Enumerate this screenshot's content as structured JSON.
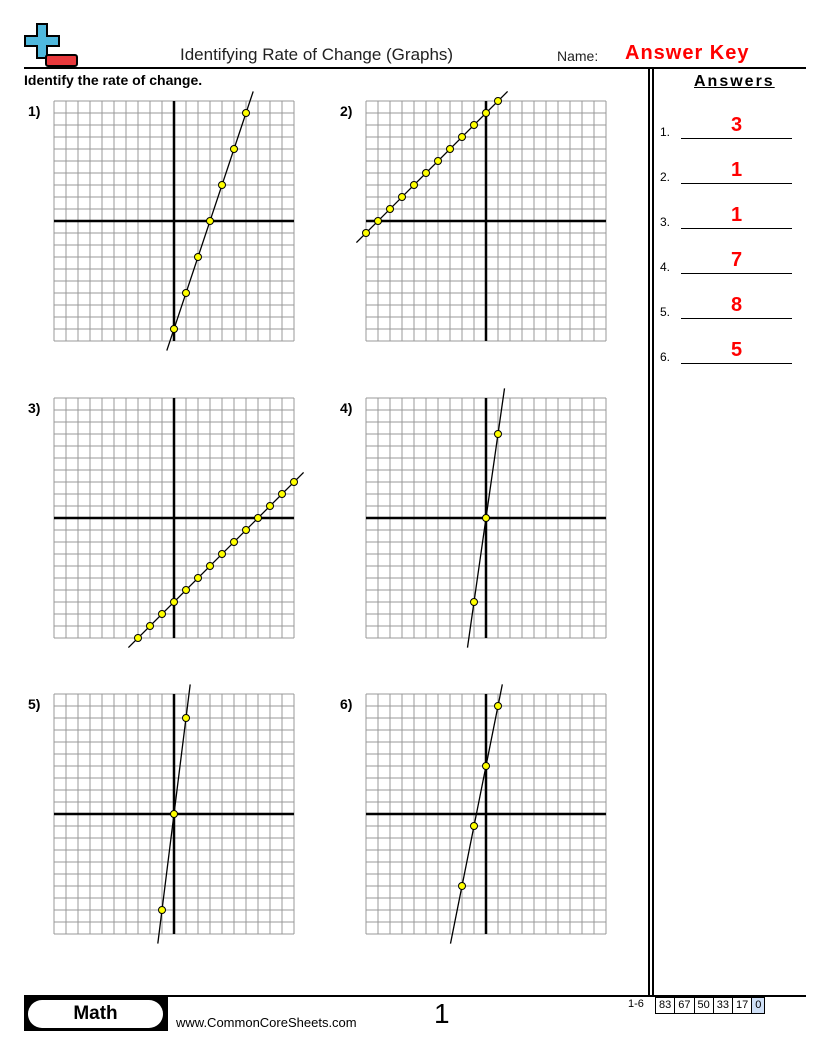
{
  "header": {
    "title": "Identifying Rate of Change (Graphs)",
    "name_label": "Name:",
    "answer_key": "Answer Key"
  },
  "instructions": "Identify the rate of change.",
  "answers": {
    "heading": "Answers",
    "items": [
      {
        "num": "1.",
        "value": "3"
      },
      {
        "num": "2.",
        "value": "1"
      },
      {
        "num": "3.",
        "value": "1"
      },
      {
        "num": "4.",
        "value": "7"
      },
      {
        "num": "5.",
        "value": "8"
      },
      {
        "num": "6.",
        "value": "5"
      }
    ]
  },
  "problems": [
    {
      "label": "1)",
      "slope": 3,
      "intercept": -9,
      "points": [
        [
          0,
          -9
        ],
        [
          1,
          -6
        ],
        [
          2,
          -3
        ],
        [
          3,
          0
        ],
        [
          4,
          3
        ],
        [
          5,
          6
        ],
        [
          6,
          9
        ]
      ]
    },
    {
      "label": "2)",
      "slope": 1,
      "intercept": 9,
      "points": [
        [
          -10,
          -1
        ],
        [
          -9,
          0
        ],
        [
          -8,
          1
        ],
        [
          -7,
          2
        ],
        [
          -6,
          3
        ],
        [
          -5,
          4
        ],
        [
          -4,
          5
        ],
        [
          -3,
          6
        ],
        [
          -2,
          7
        ],
        [
          -1,
          8
        ],
        [
          0,
          9
        ],
        [
          1,
          10
        ]
      ]
    },
    {
      "label": "3)",
      "slope": 1,
      "intercept": -7,
      "points": [
        [
          -3,
          -10
        ],
        [
          -2,
          -9
        ],
        [
          -1,
          -8
        ],
        [
          0,
          -7
        ],
        [
          1,
          -6
        ],
        [
          2,
          -5
        ],
        [
          3,
          -4
        ],
        [
          4,
          -3
        ],
        [
          5,
          -2
        ],
        [
          6,
          -1
        ],
        [
          7,
          0
        ],
        [
          8,
          1
        ],
        [
          9,
          2
        ],
        [
          10,
          3
        ]
      ]
    },
    {
      "label": "4)",
      "slope": 7,
      "intercept": 0,
      "points": [
        [
          -1,
          -7
        ],
        [
          0,
          0
        ],
        [
          1,
          7
        ]
      ]
    },
    {
      "label": "5)",
      "slope": 8,
      "intercept": 0,
      "points": [
        [
          -1,
          -8
        ],
        [
          0,
          0
        ],
        [
          1,
          8
        ]
      ]
    },
    {
      "label": "6)",
      "slope": 5,
      "intercept": 4,
      "points": [
        [
          -2,
          -6
        ],
        [
          -1,
          -1
        ],
        [
          0,
          4
        ],
        [
          1,
          9
        ]
      ]
    }
  ],
  "grid": {
    "xlim": [
      -10,
      10
    ],
    "ylim": [
      -10,
      10
    ]
  },
  "colors": {
    "point": "#ffff00",
    "answer": "#ff0000",
    "grid": "#999999"
  },
  "footer": {
    "subject": "Math",
    "site": "www.CommonCoreSheets.com",
    "page": "1",
    "range": "1-6",
    "scores": [
      "83",
      "67",
      "50",
      "33",
      "17",
      "0"
    ]
  }
}
